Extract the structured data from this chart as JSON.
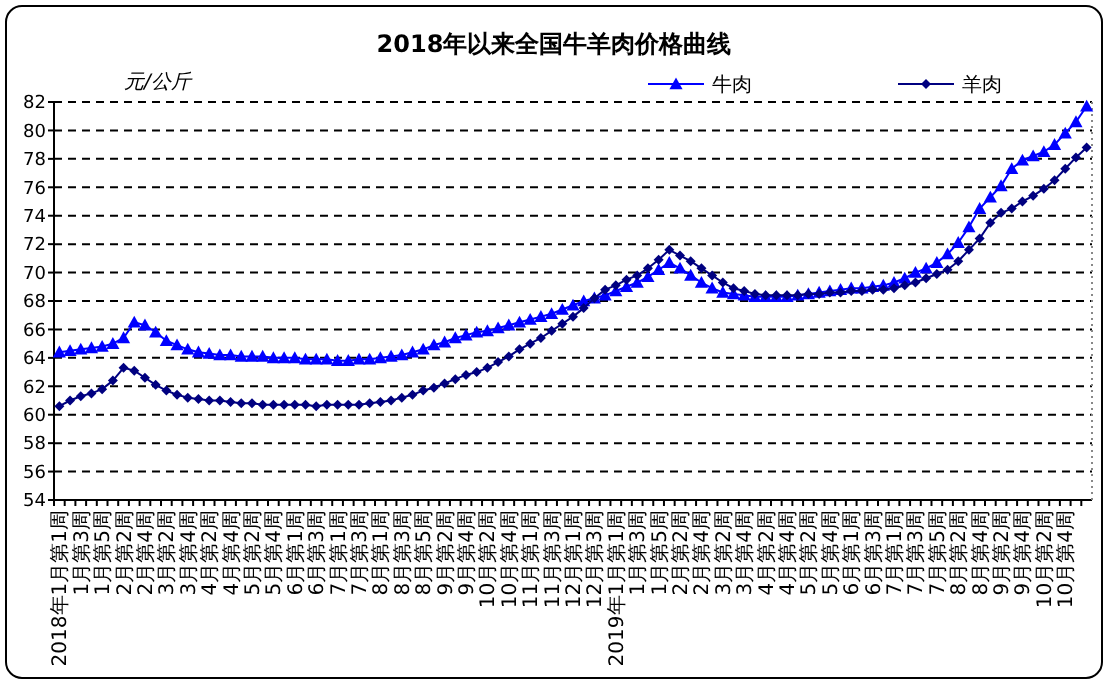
{
  "chart_data": {
    "type": "line",
    "title": "2018年以来全国牛羊肉价格曲线",
    "ylabel": "元/公斤",
    "categories": [
      "2018年1月第1周",
      null,
      "1月第3周",
      null,
      "1月第5周",
      null,
      "2月第2周",
      null,
      "2月第4周",
      null,
      "3月第2周",
      null,
      "3月第4周",
      null,
      "4月第2周",
      null,
      "4月第4周",
      null,
      "5月第2周",
      null,
      "5月第4周",
      null,
      "6月第1周",
      null,
      "6月第3周",
      null,
      "7月第1周",
      null,
      "7月第3周",
      null,
      "8月第1周",
      null,
      "8月第3周",
      null,
      "8月第5周",
      null,
      "9月第2周",
      null,
      "9月第4周",
      null,
      "10月第2周",
      null,
      "10月第4周",
      null,
      "11月第1周",
      null,
      "11月第3周",
      null,
      "12月第1周",
      null,
      "12月第3周",
      null,
      "2019年1月第1周",
      null,
      "1月第3周",
      null,
      "1月第5周",
      null,
      "2月第2周",
      null,
      "2月第4周",
      null,
      "3月第2周",
      null,
      "3月第4周",
      null,
      "4月第2周",
      null,
      "4月第4周",
      null,
      "5月第2周",
      null,
      "5月第4周",
      null,
      "6月第1周",
      null,
      "6月第3周",
      null,
      "7月第1周",
      null,
      "7月第3周",
      null,
      "7月第5周",
      null,
      "8月第2周",
      null,
      "8月第4周",
      null,
      "9月第2周",
      null,
      "9月第4周",
      null,
      "10月第2周",
      null,
      "10月第4周",
      null,
      null
    ],
    "series": [
      {
        "name": "牛肉",
        "color": "#0000ff",
        "marker": "triangle",
        "values": [
          64.4,
          64.5,
          64.6,
          64.7,
          64.8,
          65.0,
          65.4,
          66.5,
          66.3,
          65.8,
          65.2,
          64.9,
          64.6,
          64.4,
          64.3,
          64.2,
          64.2,
          64.1,
          64.1,
          64.1,
          64.0,
          64.0,
          64.0,
          63.9,
          63.9,
          63.9,
          63.8,
          63.8,
          63.9,
          63.9,
          64.0,
          64.1,
          64.2,
          64.4,
          64.6,
          64.9,
          65.1,
          65.4,
          65.6,
          65.8,
          65.9,
          66.1,
          66.3,
          66.5,
          66.7,
          66.9,
          67.1,
          67.4,
          67.7,
          68.0,
          68.2,
          68.4,
          68.7,
          69.0,
          69.3,
          69.7,
          70.2,
          70.7,
          70.3,
          69.8,
          69.3,
          68.9,
          68.6,
          68.5,
          68.4,
          68.3,
          68.3,
          68.3,
          68.3,
          68.4,
          68.5,
          68.6,
          68.7,
          68.8,
          68.9,
          68.9,
          69.0,
          69.1,
          69.3,
          69.6,
          70.0,
          70.3,
          70.7,
          71.3,
          72.1,
          73.2,
          74.5,
          75.3,
          76.1,
          77.3,
          77.9,
          78.2,
          78.5,
          79.0,
          79.8,
          80.6,
          81.7
        ]
      },
      {
        "name": "羊肉",
        "color": "#000080",
        "marker": "diamond",
        "values": [
          60.6,
          61.0,
          61.3,
          61.5,
          61.8,
          62.4,
          63.3,
          63.1,
          62.6,
          62.1,
          61.7,
          61.4,
          61.2,
          61.1,
          61.0,
          61.0,
          60.9,
          60.8,
          60.8,
          60.7,
          60.7,
          60.7,
          60.7,
          60.7,
          60.6,
          60.7,
          60.7,
          60.7,
          60.7,
          60.8,
          60.9,
          61.0,
          61.2,
          61.4,
          61.7,
          61.9,
          62.2,
          62.5,
          62.8,
          63.0,
          63.3,
          63.7,
          64.1,
          64.6,
          65.0,
          65.4,
          65.9,
          66.4,
          66.9,
          67.5,
          68.2,
          68.8,
          69.1,
          69.5,
          69.8,
          70.3,
          70.9,
          71.6,
          71.2,
          70.8,
          70.3,
          69.8,
          69.3,
          68.9,
          68.7,
          68.5,
          68.4,
          68.4,
          68.4,
          68.4,
          68.5,
          68.5,
          68.6,
          68.6,
          68.7,
          68.7,
          68.8,
          68.8,
          68.9,
          69.1,
          69.3,
          69.6,
          69.9,
          70.2,
          70.8,
          71.6,
          72.4,
          73.5,
          74.2,
          74.5,
          75.0,
          75.4,
          75.9,
          76.5,
          77.3,
          78.1,
          78.8
        ]
      }
    ],
    "ylim": [
      54,
      82
    ],
    "yticks": [
      54,
      56,
      58,
      60,
      62,
      64,
      66,
      68,
      70,
      72,
      74,
      76,
      78,
      80,
      82
    ],
    "grid": "y",
    "legend": "top right",
    "line_style": "solid"
  }
}
